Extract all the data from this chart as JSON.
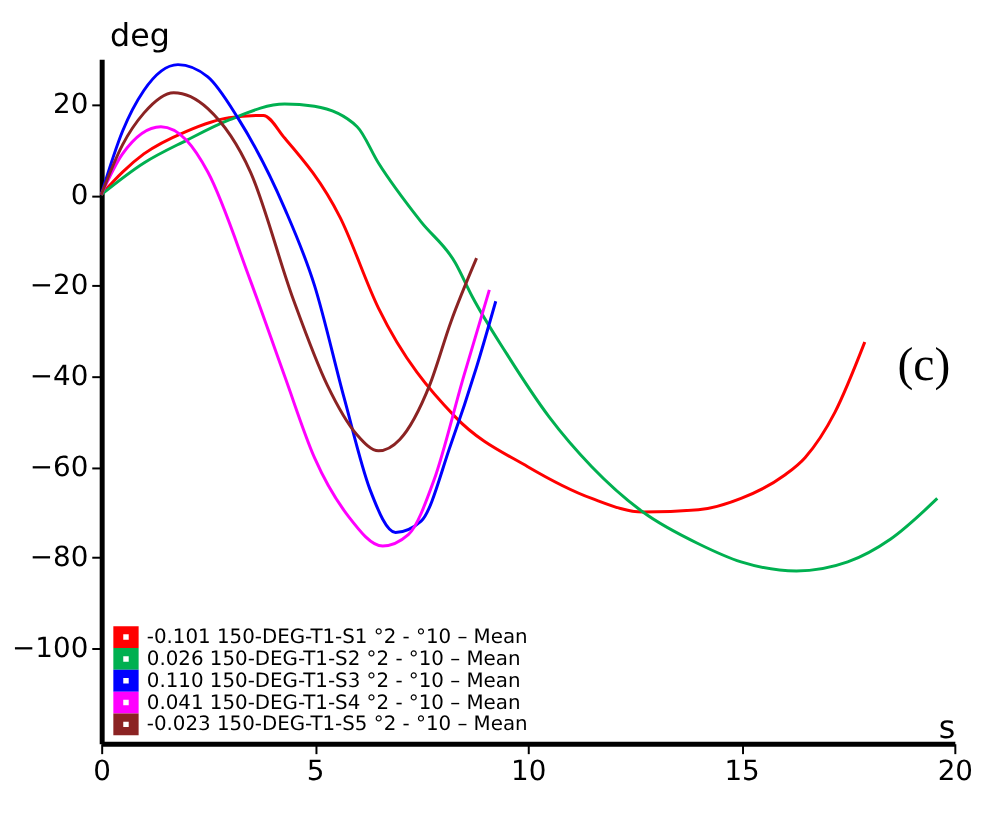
{
  "chart_data": {
    "type": "line",
    "xlabel": "s",
    "ylabel": "deg",
    "annotations": [
      "(c)"
    ],
    "xlim": [
      0,
      20
    ],
    "ylim": [
      -121,
      30
    ],
    "xticks": [
      0,
      5,
      10,
      15,
      20
    ],
    "yticks": [
      20,
      0,
      -20,
      -40,
      -60,
      -80,
      -100
    ],
    "grid": false,
    "legend": "bottom left",
    "marker": "none",
    "line_style": "solid",
    "series": [
      {
        "name": "-0.101  150-DEG-T1-S1 °2 - °10 – Mean",
        "color": "#ff0000",
        "x": [
          0,
          0.5,
          1,
          2,
          3,
          3.8,
          4.3,
          5.6,
          6.5,
          8.3,
          10,
          11.5,
          12.7,
          14,
          15,
          16,
          16.5,
          17.2,
          17.9
        ],
        "values": [
          0,
          5,
          9,
          14,
          17,
          17.5,
          12.5,
          -5,
          -25,
          -49,
          -60,
          -67,
          -70,
          -69.5,
          -67,
          -62,
          -58,
          -48,
          -32.5
        ]
      },
      {
        "name": "0.026  150-DEG-T1-S2 °2 - °10 – Mean",
        "color": "#00b050",
        "x": [
          0,
          1,
          2,
          3,
          4.3,
          5,
          6,
          6.5,
          7.5,
          8.3,
          8.7,
          9.5,
          10.5,
          11.5,
          12.7,
          14,
          15,
          16.3,
          17.5,
          18.5,
          19.6
        ],
        "values": [
          0,
          7,
          12,
          16.5,
          20,
          19.5,
          15,
          7,
          -6,
          -15,
          -22.5,
          -35,
          -49,
          -60,
          -70,
          -77,
          -81,
          -83,
          -81,
          -76,
          -67
        ]
      },
      {
        "name": "0.110  150-DEG-T1-S3 °2 - °10 – Mean",
        "color": "#0000ff",
        "x": [
          0,
          0.5,
          1,
          1.8,
          2.5,
          3.2,
          4.3,
          5,
          5.7,
          6.3,
          6.9,
          7.5,
          8.2,
          8.8,
          9.25
        ],
        "values": [
          0,
          14,
          23,
          28.7,
          26,
          17,
          -3,
          -20,
          -45,
          -65,
          -74.5,
          -72,
          -55,
          -38,
          -23.5
        ]
      },
      {
        "name": "0.041  150-DEG-T1-S4 °2 - °10 – Mean",
        "color": "#ff00ff",
        "x": [
          0,
          0.5,
          1.4,
          2,
          2.5,
          3.5,
          4.3,
          5,
          5.8,
          6.6,
          7.2,
          7.8,
          8.5,
          9.1
        ],
        "values": [
          0,
          9,
          15,
          12,
          5,
          -19,
          -40,
          -58,
          -71,
          -77.5,
          -75,
          -63,
          -40,
          -21
        ]
      },
      {
        "name": "-0.023  150-DEG-T1-S5 °2 - °10 – Mean",
        "color": "#8b2323",
        "x": [
          0,
          0.5,
          1,
          1.7,
          2.5,
          3.5,
          4.5,
          5.3,
          6,
          6.5,
          7,
          7.7,
          8.2,
          8.8
        ],
        "values": [
          0,
          11,
          18,
          22.5,
          19,
          5,
          -23,
          -42,
          -53,
          -56.5,
          -54,
          -42,
          -28,
          -14
        ]
      }
    ]
  }
}
